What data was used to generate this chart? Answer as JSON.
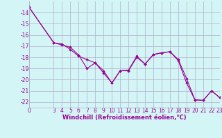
{
  "xlabel": "Windchill (Refroidissement éolien,°C)",
  "x_values": [
    0,
    3,
    4,
    5,
    6,
    7,
    8,
    9,
    10,
    11,
    12,
    13,
    14,
    15,
    16,
    17,
    18,
    19,
    20,
    21,
    22,
    23
  ],
  "y_line1": [
    -13.5,
    -16.7,
    -16.8,
    -17.3,
    -17.9,
    -18.2,
    -18.5,
    -19.4,
    -20.3,
    -19.2,
    -19.2,
    -18.0,
    -18.6,
    -17.75,
    -17.6,
    -17.5,
    -18.2,
    -19.9,
    -21.8,
    -21.85,
    -21.0,
    -21.6
  ],
  "y_line2": [
    -13.5,
    -16.7,
    -16.9,
    -17.1,
    -17.8,
    -19.0,
    -18.5,
    -19.2,
    -20.3,
    -19.2,
    -19.15,
    -17.9,
    -18.6,
    -17.75,
    -17.6,
    -17.5,
    -18.3,
    -20.3,
    -21.8,
    -21.85,
    -21.0,
    -21.6
  ],
  "ylim": [
    -22.5,
    -13.0
  ],
  "xlim": [
    0,
    23
  ],
  "yticks": [
    -22,
    -21,
    -20,
    -19,
    -18,
    -17,
    -16,
    -15,
    -14
  ],
  "xticks": [
    0,
    3,
    4,
    5,
    6,
    7,
    8,
    9,
    10,
    11,
    12,
    13,
    14,
    15,
    16,
    17,
    18,
    19,
    20,
    21,
    22,
    23
  ],
  "line_color": "#990099",
  "marker": "D",
  "bg_color": "#d4f5f5",
  "grid_color": "#b0b0cc",
  "label_color": "#990099",
  "tick_color": "#990099",
  "tick_fontsize": 5.5,
  "xlabel_fontsize": 6.0
}
